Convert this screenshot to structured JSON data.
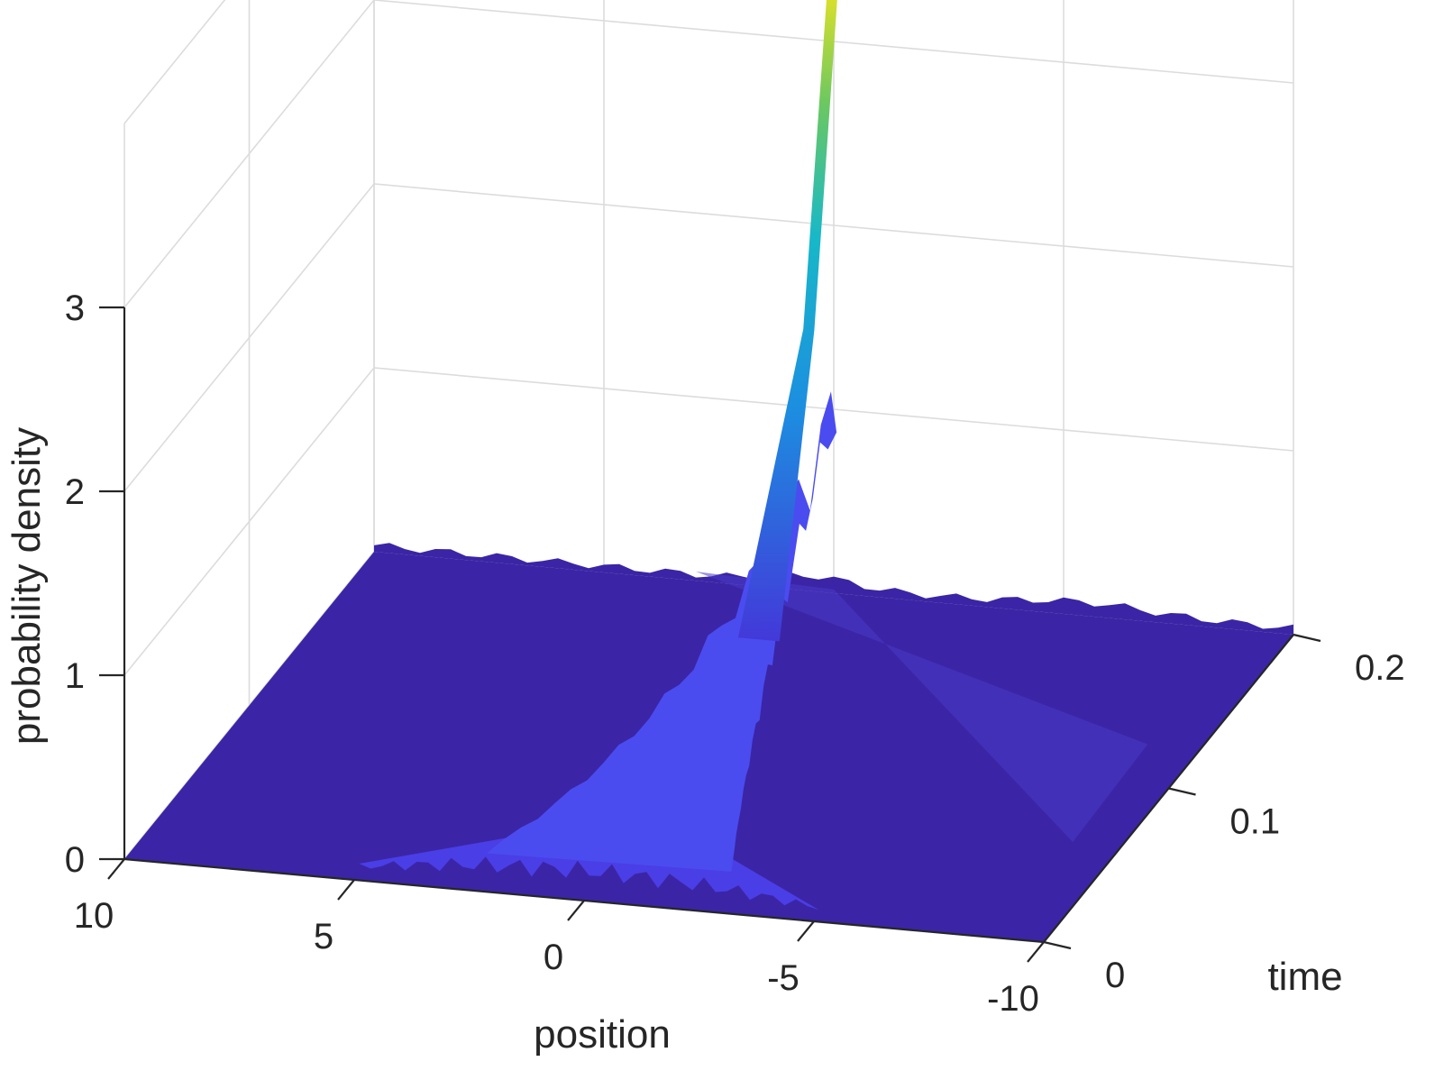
{
  "chart_data": {
    "type": "surface",
    "title": "",
    "xlabel": "position",
    "ylabel": "time",
    "zlabel": "probability density",
    "xlim": [
      -10,
      10
    ],
    "ylim": [
      0,
      0.2
    ],
    "zlim": [
      0,
      3
    ],
    "x_ticks": [
      {
        "value": 10,
        "label": "10"
      },
      {
        "value": 5,
        "label": "5"
      },
      {
        "value": 0,
        "label": "0"
      },
      {
        "value": -5,
        "label": "-5"
      },
      {
        "value": -10,
        "label": "-10"
      }
    ],
    "y_ticks": [
      {
        "value": 0,
        "label": "0"
      },
      {
        "value": 0.1,
        "label": "0.1"
      },
      {
        "value": 0.2,
        "label": "0.2"
      }
    ],
    "z_ticks": [
      {
        "value": 0,
        "label": "0"
      },
      {
        "value": 1,
        "label": "1"
      },
      {
        "value": 2,
        "label": "2"
      },
      {
        "value": 3,
        "label": "3"
      }
    ],
    "grid": true,
    "colormap": "parula",
    "colors": {
      "base": "#3b25a6",
      "low": "#4338d9",
      "mid": "#1ea6dd",
      "high": "#35c38a",
      "peak": "#f8e61e"
    },
    "surface": {
      "peak": {
        "position": 0,
        "time": 0.2,
        "density": 3.4
      },
      "initial_spread": {
        "time": 0,
        "position_range": [
          -5,
          5
        ],
        "density": 0.18
      },
      "background_density": 0.02
    }
  }
}
